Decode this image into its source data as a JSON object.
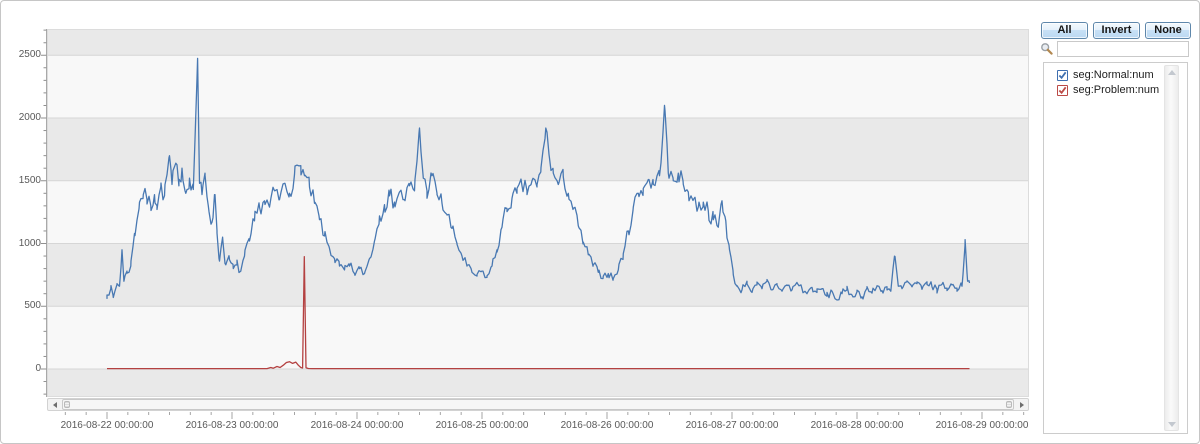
{
  "side_panel": {
    "buttons": [
      {
        "label": "All"
      },
      {
        "label": "Invert"
      },
      {
        "label": "None"
      }
    ],
    "search": {
      "value": "",
      "placeholder": ""
    },
    "legend": {
      "items": [
        {
          "label": "seg:Normal:num",
          "checked": true,
          "color": "#3f6fb0"
        },
        {
          "label": "seg:Problem:num",
          "checked": true,
          "color": "#bb4a46"
        }
      ]
    }
  },
  "colors": {
    "band_gray": "#e9e9e9",
    "band_white": "#f8f8f8",
    "gridline": "#d6d6d6",
    "axis": "#a9a9a9",
    "tick": "#8f8f8f",
    "tick_label": "#595959",
    "series_normal": "#4878b2",
    "series_problem": "#b44141"
  },
  "chart_data": {
    "type": "line",
    "title": "",
    "xlabel": "",
    "ylabel": "",
    "grid": "horizontal bands, 500-unit stripes, gridline every 500",
    "legend_position": "right-panel list",
    "yticks": [
      0,
      500,
      1000,
      1500,
      2000,
      2500
    ],
    "y_minor_step": 100,
    "ylim": [
      -225,
      2710
    ],
    "x_unit": "days since 2016-08-22 00:00:00",
    "xlim_days": [
      -0.48,
      7.38
    ],
    "x_tick_labels": [
      "2016-08-22 00:00:00",
      "2016-08-23 00:00:00",
      "2016-08-24 00:00:00",
      "2016-08-25 00:00:00",
      "2016-08-26 00:00:00",
      "2016-08-27 00:00:00",
      "2016-08-28 00:00:00",
      "2016-08-29 00:00:00"
    ],
    "x_minor_per_day": 6,
    "series": [
      {
        "name": "seg:Normal:num",
        "color": "#4878b2",
        "noisy": true,
        "points": [
          [
            0.0,
            590
          ],
          [
            0.03,
            640
          ],
          [
            0.05,
            570
          ],
          [
            0.08,
            680
          ],
          [
            0.1,
            660
          ],
          [
            0.12,
            950
          ],
          [
            0.135,
            700
          ],
          [
            0.16,
            780
          ],
          [
            0.19,
            820
          ],
          [
            0.22,
            1080
          ],
          [
            0.26,
            1330
          ],
          [
            0.29,
            1390
          ],
          [
            0.32,
            1350
          ],
          [
            0.35,
            1300
          ],
          [
            0.38,
            1390
          ],
          [
            0.4,
            1300
          ],
          [
            0.43,
            1450
          ],
          [
            0.46,
            1380
          ],
          [
            0.5,
            1700
          ],
          [
            0.52,
            1470
          ],
          [
            0.55,
            1640
          ],
          [
            0.575,
            1460
          ],
          [
            0.6,
            1600
          ],
          [
            0.63,
            1400
          ],
          [
            0.66,
            1520
          ],
          [
            0.69,
            1430
          ],
          [
            0.725,
            2475
          ],
          [
            0.74,
            1480
          ],
          [
            0.76,
            1390
          ],
          [
            0.785,
            1540
          ],
          [
            0.81,
            1300
          ],
          [
            0.84,
            1170
          ],
          [
            0.86,
            1390
          ],
          [
            0.88,
            1100
          ],
          [
            0.9,
            860
          ],
          [
            0.925,
            1050
          ],
          [
            0.95,
            830
          ],
          [
            0.98,
            870
          ],
          [
            1.01,
            800
          ],
          [
            1.04,
            830
          ],
          [
            1.07,
            780
          ],
          [
            1.1,
            900
          ],
          [
            1.14,
            1020
          ],
          [
            1.18,
            1180
          ],
          [
            1.22,
            1290
          ],
          [
            1.26,
            1340
          ],
          [
            1.3,
            1290
          ],
          [
            1.34,
            1420
          ],
          [
            1.38,
            1350
          ],
          [
            1.42,
            1480
          ],
          [
            1.46,
            1400
          ],
          [
            1.5,
            1550
          ],
          [
            1.55,
            1620
          ],
          [
            1.58,
            1540
          ],
          [
            1.62,
            1450
          ],
          [
            1.66,
            1320
          ],
          [
            1.7,
            1190
          ],
          [
            1.74,
            1060
          ],
          [
            1.78,
            960
          ],
          [
            1.82,
            880
          ],
          [
            1.86,
            820
          ],
          [
            1.9,
            790
          ],
          [
            1.94,
            820
          ],
          [
            1.98,
            760
          ],
          [
            2.02,
            800
          ],
          [
            2.06,
            760
          ],
          [
            2.1,
            880
          ],
          [
            2.14,
            1020
          ],
          [
            2.18,
            1220
          ],
          [
            2.22,
            1310
          ],
          [
            2.26,
            1380
          ],
          [
            2.3,
            1330
          ],
          [
            2.34,
            1410
          ],
          [
            2.38,
            1350
          ],
          [
            2.42,
            1460
          ],
          [
            2.46,
            1420
          ],
          [
            2.5,
            1920
          ],
          [
            2.53,
            1520
          ],
          [
            2.56,
            1420
          ],
          [
            2.6,
            1540
          ],
          [
            2.64,
            1400
          ],
          [
            2.68,
            1320
          ],
          [
            2.72,
            1230
          ],
          [
            2.76,
            1120
          ],
          [
            2.8,
            1000
          ],
          [
            2.84,
            900
          ],
          [
            2.88,
            820
          ],
          [
            2.92,
            770
          ],
          [
            2.96,
            740
          ],
          [
            3.0,
            780
          ],
          [
            3.04,
            730
          ],
          [
            3.08,
            820
          ],
          [
            3.12,
            950
          ],
          [
            3.16,
            1130
          ],
          [
            3.2,
            1280
          ],
          [
            3.24,
            1360
          ],
          [
            3.28,
            1400
          ],
          [
            3.32,
            1460
          ],
          [
            3.36,
            1420
          ],
          [
            3.4,
            1500
          ],
          [
            3.44,
            1450
          ],
          [
            3.47,
            1570
          ],
          [
            3.51,
            1920
          ],
          [
            3.54,
            1680
          ],
          [
            3.57,
            1560
          ],
          [
            3.61,
            1470
          ],
          [
            3.65,
            1530
          ],
          [
            3.69,
            1400
          ],
          [
            3.73,
            1280
          ],
          [
            3.77,
            1140
          ],
          [
            3.81,
            1010
          ],
          [
            3.85,
            910
          ],
          [
            3.89,
            830
          ],
          [
            3.93,
            770
          ],
          [
            3.97,
            740
          ],
          [
            4.01,
            760
          ],
          [
            4.05,
            720
          ],
          [
            4.09,
            790
          ],
          [
            4.13,
            920
          ],
          [
            4.17,
            1100
          ],
          [
            4.21,
            1290
          ],
          [
            4.25,
            1400
          ],
          [
            4.29,
            1440
          ],
          [
            4.33,
            1510
          ],
          [
            4.37,
            1470
          ],
          [
            4.42,
            1540
          ],
          [
            4.46,
            2100
          ],
          [
            4.49,
            1560
          ],
          [
            4.53,
            1500
          ],
          [
            4.57,
            1560
          ],
          [
            4.61,
            1470
          ],
          [
            4.65,
            1410
          ],
          [
            4.69,
            1350
          ],
          [
            4.73,
            1290
          ],
          [
            4.77,
            1330
          ],
          [
            4.81,
            1260
          ],
          [
            4.85,
            1190
          ],
          [
            4.89,
            1130
          ],
          [
            4.92,
            1340
          ],
          [
            4.95,
            1180
          ],
          [
            4.98,
            950
          ],
          [
            5.01,
            750
          ],
          [
            5.04,
            660
          ],
          [
            5.08,
            630
          ],
          [
            5.12,
            700
          ],
          [
            5.16,
            610
          ],
          [
            5.2,
            670
          ],
          [
            5.24,
            640
          ],
          [
            5.28,
            700
          ],
          [
            5.32,
            630
          ],
          [
            5.36,
            680
          ],
          [
            5.4,
            620
          ],
          [
            5.44,
            670
          ],
          [
            5.48,
            630
          ],
          [
            5.52,
            690
          ],
          [
            5.56,
            640
          ],
          [
            5.6,
            600
          ],
          [
            5.64,
            650
          ],
          [
            5.68,
            610
          ],
          [
            5.72,
            640
          ],
          [
            5.76,
            580
          ],
          [
            5.8,
            620
          ],
          [
            5.84,
            550
          ],
          [
            5.88,
            600
          ],
          [
            5.92,
            630
          ],
          [
            5.96,
            590
          ],
          [
            6.0,
            615
          ],
          [
            6.04,
            575
          ],
          [
            6.08,
            645
          ],
          [
            6.12,
            605
          ],
          [
            6.16,
            660
          ],
          [
            6.2,
            625
          ],
          [
            6.24,
            655
          ],
          [
            6.27,
            620
          ],
          [
            6.3,
            900
          ],
          [
            6.33,
            660
          ],
          [
            6.36,
            640
          ],
          [
            6.4,
            695
          ],
          [
            6.44,
            655
          ],
          [
            6.48,
            680
          ],
          [
            6.52,
            635
          ],
          [
            6.56,
            695
          ],
          [
            6.6,
            655
          ],
          [
            6.64,
            635
          ],
          [
            6.68,
            675
          ],
          [
            6.72,
            645
          ],
          [
            6.76,
            670
          ],
          [
            6.8,
            645
          ],
          [
            6.84,
            660
          ],
          [
            6.865,
            1030
          ],
          [
            6.885,
            700
          ],
          [
            6.9,
            685
          ]
        ]
      },
      {
        "name": "seg:Problem:num",
        "color": "#b44141",
        "noisy": false,
        "points": [
          [
            0.0,
            3
          ],
          [
            1.28,
            3
          ],
          [
            1.31,
            12
          ],
          [
            1.33,
            6
          ],
          [
            1.36,
            20
          ],
          [
            1.385,
            12
          ],
          [
            1.41,
            30
          ],
          [
            1.435,
            52
          ],
          [
            1.46,
            58
          ],
          [
            1.485,
            45
          ],
          [
            1.51,
            55
          ],
          [
            1.53,
            30
          ],
          [
            1.55,
            12
          ],
          [
            1.565,
            8
          ],
          [
            1.578,
            895
          ],
          [
            1.592,
            10
          ],
          [
            1.61,
            4
          ],
          [
            1.64,
            3
          ],
          [
            6.9,
            3
          ]
        ]
      }
    ]
  }
}
